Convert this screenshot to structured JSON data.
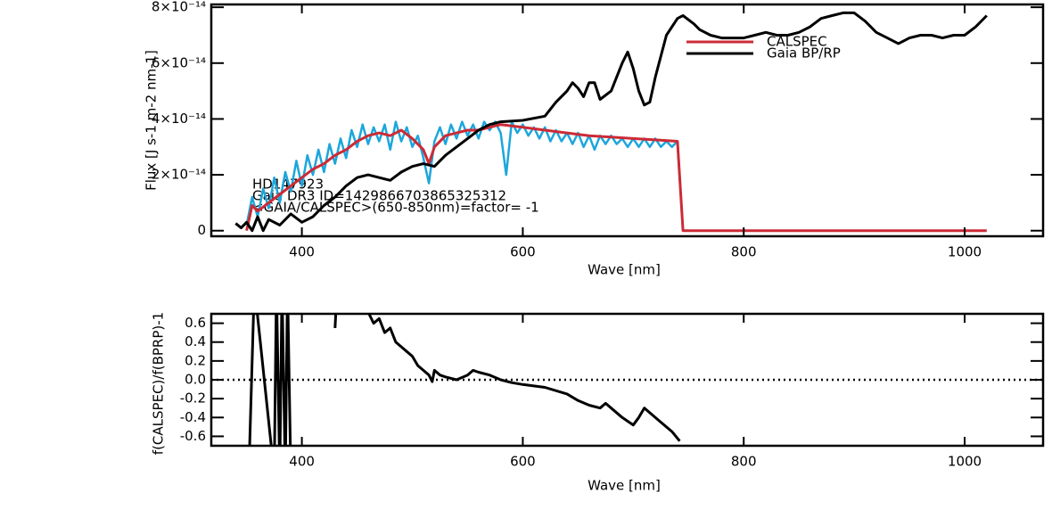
{
  "chart_data": [
    {
      "type": "line",
      "xlabel": "Wave [nm]",
      "ylabel": "Flux [J s-1 m-2 nm-1]",
      "xlim": [
        318,
        1071
      ],
      "ylim": [
        -2e-15,
        8.1e-14
      ],
      "xticks": [
        400,
        600,
        800,
        1000
      ],
      "yticks": [
        0,
        {
          "value": 2e-14,
          "label": "2×10⁻¹⁴"
        },
        {
          "value": 4e-14,
          "label": "4×10⁻¹⁴"
        },
        {
          "value": 6e-14,
          "label": "6×10⁻¹⁴"
        },
        {
          "value": 8e-14,
          "label": "8×10⁻¹⁴"
        }
      ],
      "annotations": [
        "HD147923",
        "Gaia DR3 ID=1429866703865325312",
        "<GAIA/CALSPEC>(650-850nm)=factor=       -1"
      ],
      "legend": "upper right",
      "series": [
        {
          "color": "#1ca6dc",
          "x": [
            350,
            355,
            360,
            365,
            370,
            375,
            380,
            385,
            390,
            395,
            400,
            405,
            410,
            415,
            420,
            425,
            430,
            435,
            440,
            445,
            450,
            455,
            460,
            465,
            470,
            475,
            480,
            485,
            490,
            495,
            500,
            505,
            510,
            515,
            520,
            525,
            530,
            535,
            540,
            545,
            550,
            555,
            560,
            565,
            570,
            575,
            580,
            585,
            590,
            595,
            600,
            605,
            610,
            615,
            620,
            625,
            630,
            635,
            640,
            645,
            650,
            655,
            660,
            665,
            670,
            675,
            680,
            685,
            690,
            695,
            700,
            705,
            710,
            715,
            720,
            725,
            730,
            735,
            740,
            745
          ],
          "values": [
            2e-15,
            1.2e-14,
            5e-15,
            1.5e-14,
            8e-15,
            1.9e-14,
            1e-14,
            2.1e-14,
            1.4e-14,
            2.5e-14,
            1.6e-14,
            2.7e-14,
            2e-14,
            2.9e-14,
            2.1e-14,
            3.1e-14,
            2.4e-14,
            3.3e-14,
            2.6e-14,
            3.6e-14,
            3e-14,
            3.8e-14,
            3.1e-14,
            3.7e-14,
            3.2e-14,
            3.8e-14,
            2.9e-14,
            3.9e-14,
            3.2e-14,
            3.7e-14,
            3e-14,
            3.4e-14,
            2.6e-14,
            1.7e-14,
            3.2e-14,
            3.7e-14,
            3.1e-14,
            3.8e-14,
            3.3e-14,
            3.9e-14,
            3.4e-14,
            3.8e-14,
            3.3e-14,
            3.9e-14,
            3.6e-14,
            3.9e-14,
            3.5e-14,
            2e-14,
            3.9e-14,
            3.5e-14,
            3.8e-14,
            3.4e-14,
            3.7e-14,
            3.3e-14,
            3.7e-14,
            3.2e-14,
            3.6e-14,
            3.2e-14,
            3.5e-14,
            3.1e-14,
            3.5e-14,
            3e-14,
            3.4e-14,
            2.9e-14,
            3.4e-14,
            3.1e-14,
            3.4e-14,
            3.1e-14,
            3.3e-14,
            3e-14,
            3.3e-14,
            3e-14,
            3.3e-14,
            3e-14,
            3.3e-14,
            3e-14,
            3.2e-14,
            3e-14,
            3.2e-14,
            0
          ]
        },
        {
          "name": "CALSPEC",
          "color": "#cc2b36",
          "x": [
            350,
            355,
            360,
            370,
            380,
            390,
            400,
            410,
            420,
            430,
            440,
            450,
            460,
            470,
            480,
            490,
            500,
            510,
            515,
            520,
            530,
            540,
            550,
            560,
            570,
            580,
            590,
            600,
            620,
            640,
            660,
            680,
            700,
            720,
            740,
            745,
            1020
          ],
          "values": [
            0,
            9e-15,
            7e-15,
            1e-14,
            1.3e-14,
            1.6e-14,
            1.9e-14,
            2.2e-14,
            2.4e-14,
            2.7e-14,
            2.9e-14,
            3.2e-14,
            3.4e-14,
            3.5e-14,
            3.4e-14,
            3.6e-14,
            3.3e-14,
            2.9e-14,
            2.4e-14,
            3e-14,
            3.4e-14,
            3.5e-14,
            3.6e-14,
            3.6e-14,
            3.7e-14,
            3.8e-14,
            3.75e-14,
            3.7e-14,
            3.6e-14,
            3.5e-14,
            3.4e-14,
            3.35e-14,
            3.3e-14,
            3.25e-14,
            3.2e-14,
            0,
            0
          ]
        },
        {
          "name": "Gaia BP/RP",
          "color": "#000000",
          "x": [
            340,
            345,
            350,
            355,
            360,
            365,
            370,
            380,
            390,
            400,
            410,
            420,
            430,
            440,
            450,
            460,
            470,
            480,
            490,
            500,
            510,
            520,
            530,
            540,
            550,
            560,
            570,
            580,
            600,
            620,
            630,
            640,
            645,
            650,
            655,
            660,
            665,
            670,
            680,
            690,
            695,
            700,
            705,
            710,
            715,
            720,
            730,
            740,
            745,
            755,
            760,
            770,
            780,
            790,
            800,
            810,
            820,
            830,
            840,
            850,
            860,
            870,
            880,
            890,
            900,
            910,
            920,
            930,
            940,
            950,
            960,
            970,
            980,
            990,
            1000,
            1010,
            1020
          ],
          "values": [
            2.6e-15,
            1e-15,
            3e-15,
            0,
            5e-15,
            0,
            4e-15,
            2e-15,
            6e-15,
            3e-15,
            5e-15,
            9e-15,
            1.2e-14,
            1.6e-14,
            1.9e-14,
            2e-14,
            1.9e-14,
            1.8e-14,
            2.1e-14,
            2.3e-14,
            2.4e-14,
            2.3e-14,
            2.7e-14,
            3e-14,
            3.3e-14,
            3.6e-14,
            3.8e-14,
            3.9e-14,
            3.95e-14,
            4.1e-14,
            4.6e-14,
            5e-14,
            5.3e-14,
            5.1e-14,
            4.8e-14,
            5.3e-14,
            5.3e-14,
            4.7e-14,
            5e-14,
            6e-14,
            6.4e-14,
            5.8e-14,
            5e-14,
            4.5e-14,
            4.6e-14,
            5.5e-14,
            7e-14,
            7.6e-14,
            7.7e-14,
            7.4e-14,
            7.2e-14,
            7e-14,
            6.9e-14,
            6.9e-14,
            6.9e-14,
            7e-14,
            7.1e-14,
            7e-14,
            7e-14,
            7.1e-14,
            7.3e-14,
            7.6e-14,
            7.7e-14,
            7.8e-14,
            7.8e-14,
            7.5e-14,
            7.1e-14,
            6.9e-14,
            6.7e-14,
            6.9e-14,
            7e-14,
            7e-14,
            6.9e-14,
            7e-14,
            7e-14,
            7.3e-14,
            7.7e-14
          ]
        }
      ]
    },
    {
      "type": "line",
      "xlabel": "Wave [nm]",
      "ylabel": "f(CALSPEC)/f(BPRP)-1",
      "xlim": [
        318,
        1071
      ],
      "ylim": [
        -0.7,
        0.7
      ],
      "xticks": [
        400,
        600,
        800,
        1000
      ],
      "yticks": [
        0.6,
        0.4,
        0.2,
        {
          "value": 0,
          "label": "0.0"
        },
        -0.2,
        -0.4,
        -0.6
      ],
      "hline": 0,
      "series": [
        {
          "color": "#000000",
          "x": [
            352,
            357,
            375,
            377,
            380,
            382,
            385,
            387,
            390,
            400,
            430,
            432,
            445,
            460,
            465,
            470,
            475,
            480,
            485,
            490,
            495,
            500,
            505,
            510,
            515,
            518,
            520,
            525,
            530,
            540,
            550,
            555,
            560,
            570,
            580,
            590,
            600,
            620,
            640,
            650,
            660,
            670,
            675,
            680,
            690,
            700,
            705,
            710,
            715,
            725,
            735,
            742
          ],
          "values": [
            -1,
            1,
            -1,
            1,
            -1,
            1,
            -1,
            1,
            -1,
            null,
            0.55,
            1,
            null,
            0.72,
            0.6,
            0.65,
            0.5,
            0.55,
            0.4,
            0.35,
            0.3,
            0.25,
            0.15,
            0.1,
            0.05,
            -0.02,
            0.1,
            0.05,
            0.03,
            0.0,
            0.05,
            0.1,
            0.08,
            0.05,
            0.0,
            -0.03,
            -0.05,
            -0.08,
            -0.15,
            -0.22,
            -0.27,
            -0.3,
            -0.25,
            -0.3,
            -0.4,
            -0.48,
            -0.4,
            -0.3,
            -0.35,
            -0.45,
            -0.55,
            -0.65
          ]
        }
      ]
    }
  ]
}
